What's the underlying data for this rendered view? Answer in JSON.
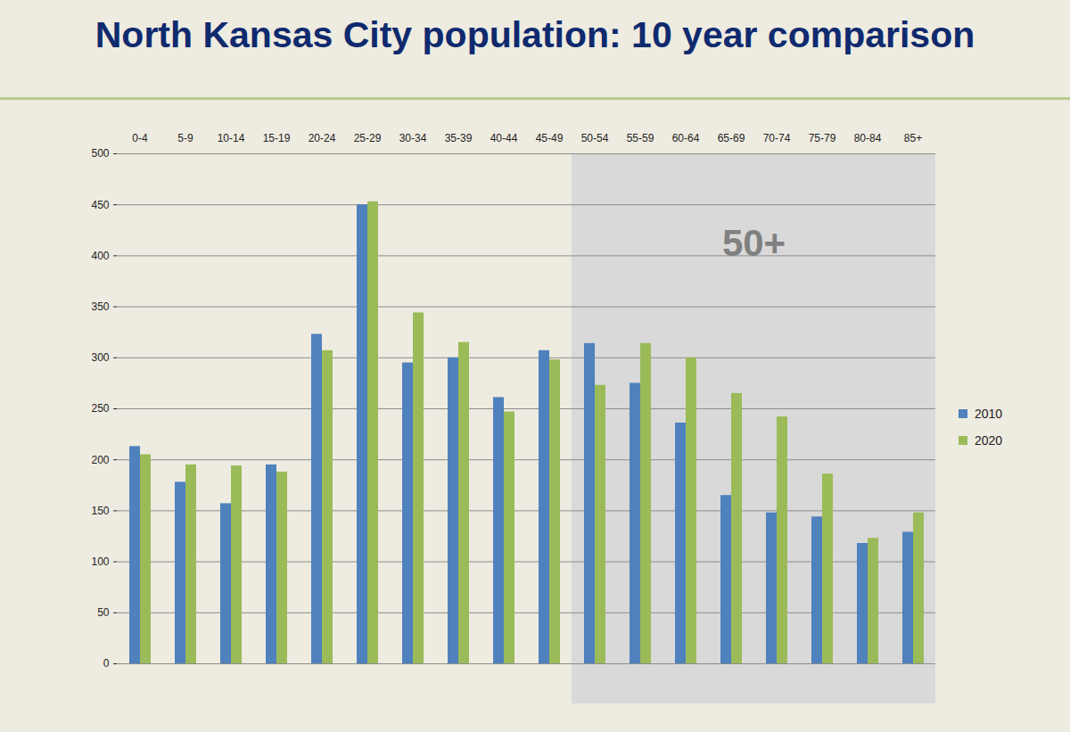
{
  "chart_data": {
    "type": "bar",
    "title": "North Kansas City population: 10 year comparison",
    "categories": [
      "0-4",
      "5-9",
      "10-14",
      "15-19",
      "20-24",
      "25-29",
      "30-34",
      "35-39",
      "40-44",
      "45-49",
      "50-54",
      "55-59",
      "60-64",
      "65-69",
      "70-74",
      "75-79",
      "80-84",
      "85+"
    ],
    "series": [
      {
        "name": "2010",
        "color": "#4f81bd",
        "values": [
          213,
          178,
          157,
          195,
          323,
          450,
          295,
          300,
          261,
          307,
          314,
          275,
          236,
          165,
          148,
          144,
          118,
          129
        ]
      },
      {
        "name": "2020",
        "color": "#9bbb59",
        "values": [
          205,
          195,
          194,
          188,
          307,
          453,
          344,
          315,
          247,
          298,
          273,
          314,
          300,
          265,
          242,
          186,
          123,
          148
        ]
      }
    ],
    "ylim": [
      0,
      500
    ],
    "yticks": [
      0,
      50,
      100,
      150,
      200,
      250,
      300,
      350,
      400,
      450,
      500
    ],
    "grid": true,
    "legend": "right",
    "annotations": [
      {
        "text": "50+",
        "from": "50-54",
        "to": "85+"
      }
    ]
  }
}
